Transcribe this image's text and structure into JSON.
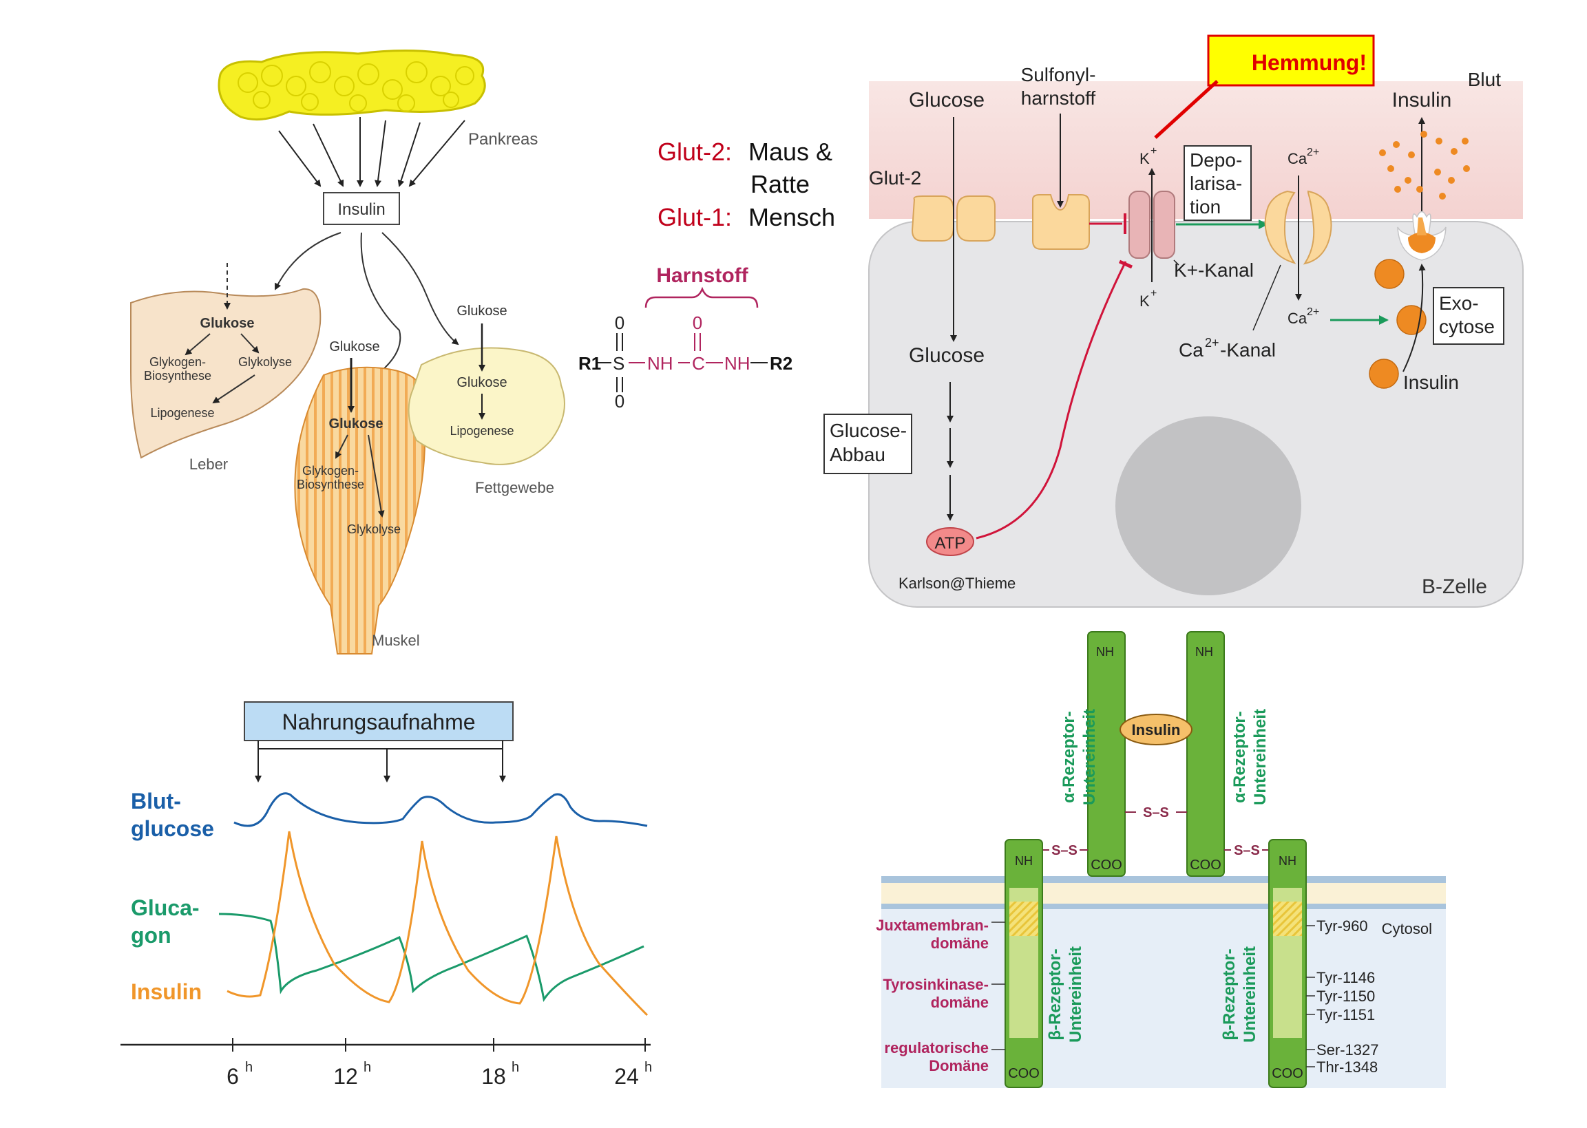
{
  "insulin_targets": {
    "pancreas": "Pankreas",
    "insulin_box": "Insulin",
    "liver": {
      "glukose": "Glukose",
      "glykogen_l1": "Glykogen-",
      "glykogen_l2": "Biosynthese",
      "glykolyse": "Glykolyse",
      "lipogenese": "Lipogenese",
      "label": "Leber"
    },
    "muscle": {
      "glukose_top": "Glukose",
      "glukose": "Glukose",
      "glykogen_l1": "Glykogen-",
      "glykogen_l2": "Biosynthese",
      "glykolyse": "Glykolyse",
      "label": "Muskel"
    },
    "fat": {
      "glukose_top": "Glukose",
      "glukose": "Glukose",
      "lipogenese": "Lipogenese",
      "label": "Fettgewebe"
    }
  },
  "glut_note": {
    "glut2_name": "Glut-2:",
    "glut2_species_l1": "Maus &",
    "glut2_species_l2": "Ratte",
    "glut1_name": "Glut-1:",
    "glut1_species": "Mensch"
  },
  "urea": {
    "title": "Harnstoff",
    "r1": "R1",
    "s": "S",
    "nh1": "NH",
    "c": "C",
    "nh2": "NH",
    "r2": "R2",
    "o_top_s": "0",
    "o_bottom_s": "0",
    "o_top_c": "0"
  },
  "beta_cell": {
    "hemmung": "Hemmung!",
    "blut": "Blut",
    "glucose_top": "Glucose",
    "sulfonyl_l1": "Sulfonyl-",
    "sulfonyl_l2": "harnstoff",
    "glut2": "Glut-2",
    "k_top": "K",
    "k_bottom": "K",
    "plus": "+",
    "depol_l1": "Depo-",
    "depol_l2": "larisa-",
    "depol_l3": "tion",
    "ca_top": "Ca",
    "ca_bottom": "Ca",
    "two_plus": "2+",
    "insulin_top": "Insulin",
    "k_kanal": "K+-Kanal",
    "ca_kanal_pre": "Ca",
    "ca_kanal_post": "-Kanal",
    "glucose_mid": "Glucose",
    "abbau_l1": "Glucose-",
    "abbau_l2": "Abbau",
    "atp": "ATP",
    "exo_l1": "Exo-",
    "exo_l2": "cytose",
    "insulin_bottom": "Insulin",
    "credit": "Karlson@Thieme",
    "label": "B-Zelle"
  },
  "time_chart": {
    "banner": "Nahrungsaufnahme",
    "blutglucose_l1": "Blut-",
    "blutglucose_l2": "glucose",
    "glucagon_l1": "Gluca-",
    "glucagon_l2": "gon",
    "insulin": "Insulin",
    "ticks": [
      "6",
      "12",
      "18",
      "24"
    ],
    "unit": "h"
  },
  "receptor": {
    "insulin": "Insulin",
    "alpha_l1": "α-Rezeptor-",
    "alpha_l2": "Untereinheit",
    "beta_l1": "β-Rezeptor-",
    "beta_l2": "Untereinheit",
    "nh3": "NH",
    "coo": "COO",
    "ss": "S–S",
    "juxta_l1": "Juxtamembran-",
    "juxta_l2": "domäne",
    "tyro_l1": "Tyrosinkinase-",
    "tyro_l2": "domäne",
    "regul_l1": "regulatorische",
    "regul_l2": "Domäne",
    "cytosol": "Cytosol",
    "residues": [
      "Tyr-960",
      "Tyr-1146",
      "Tyr-1150",
      "Tyr-1151",
      "Ser-1327",
      "Thr-1348"
    ]
  },
  "colors": {
    "red": "#c0001a",
    "green_arrow": "#1a9a5a",
    "blue_curve": "#1a5fa8",
    "orange_curve": "#f0962a",
    "green_curve": "#1a9a6a",
    "receptor_green": "#6ab23a",
    "magenta_label": "#b0245e"
  }
}
